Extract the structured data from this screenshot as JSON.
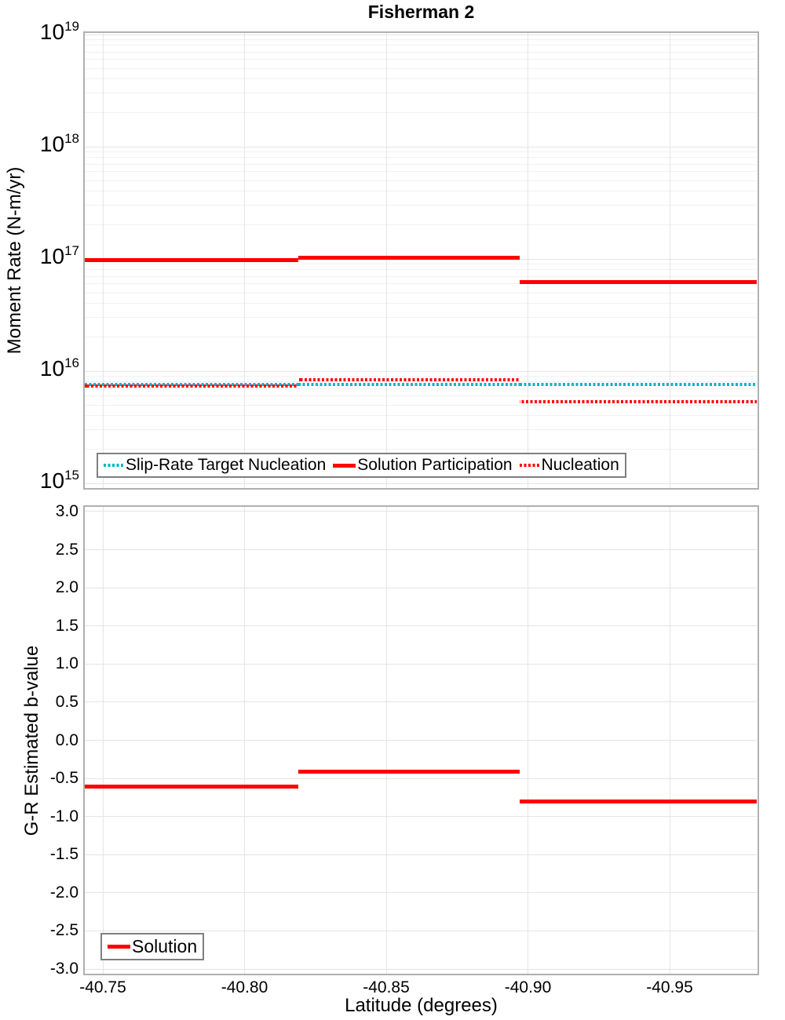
{
  "title": "Fisherman 2",
  "colors": {
    "solution": "#ff0000",
    "slip_rate_target": "#00b7c2",
    "nucleation": "#ff0000",
    "grid_major": "#e5e5e5",
    "grid_minor": "#f1f1f1",
    "panel_border": "#b0b0b0",
    "text": "#000000"
  },
  "chart_data": [
    {
      "type": "line",
      "subtype": "step",
      "title": "Fisherman 2",
      "ylabel": "Moment Rate (N-m/yr)",
      "yscale": "log",
      "ylim": [
        1000000000000000.0,
        1e+19
      ],
      "ytick_exponents": [
        "19",
        "18",
        "17",
        "16",
        "15"
      ],
      "ytick_base": "10",
      "grid": true,
      "xlim": [
        -40.743,
        -40.981
      ],
      "x_edges": [
        -40.743,
        -40.819,
        -40.897,
        -40.981
      ],
      "series": [
        {
          "name": "Slip-Rate Target Nucleation",
          "style": "dotted",
          "color_key": "slip_rate_target",
          "values": [
            7600000000000000.0,
            7600000000000000.0,
            7600000000000000.0
          ]
        },
        {
          "name": "Solution Participation",
          "style": "solid",
          "color_key": "solution",
          "values": [
            9.7e+16,
            1.03e+17,
            6.2e+16
          ]
        },
        {
          "name": "Nucleation",
          "style": "dotted",
          "color_key": "nucleation",
          "values": [
            7350000000000000.0,
            8400000000000000.0,
            5300000000000000.0
          ]
        }
      ],
      "legend_position": "bottom-left-inside"
    },
    {
      "type": "line",
      "subtype": "step",
      "ylabel": "G-R Estimated b-value",
      "xlabel": "Latitude (degrees)",
      "ylim": [
        -3.0,
        3.0
      ],
      "ytick_labels": [
        "3.0",
        "2.5",
        "2.0",
        "1.5",
        "1.0",
        "0.5",
        "0.0",
        "-0.5",
        "-1.0",
        "-1.5",
        "-2.0",
        "-2.5",
        "-3.0"
      ],
      "ytick_values": [
        3.0,
        2.5,
        2.0,
        1.5,
        1.0,
        0.5,
        0.0,
        -0.5,
        -1.0,
        -1.5,
        -2.0,
        -2.5,
        -3.0
      ],
      "xtick_labels": [
        "-40.75",
        "-40.80",
        "-40.85",
        "-40.90",
        "-40.95"
      ],
      "xtick_values": [
        -40.75,
        -40.8,
        -40.85,
        -40.9,
        -40.95
      ],
      "grid": true,
      "xlim": [
        -40.743,
        -40.981
      ],
      "x_edges": [
        -40.743,
        -40.819,
        -40.897,
        -40.981
      ],
      "series": [
        {
          "name": "Solution",
          "style": "solid",
          "color_key": "solution",
          "values": [
            -0.61,
            -0.41,
            -0.8
          ]
        }
      ],
      "legend_position": "bottom-left-inside"
    }
  ]
}
